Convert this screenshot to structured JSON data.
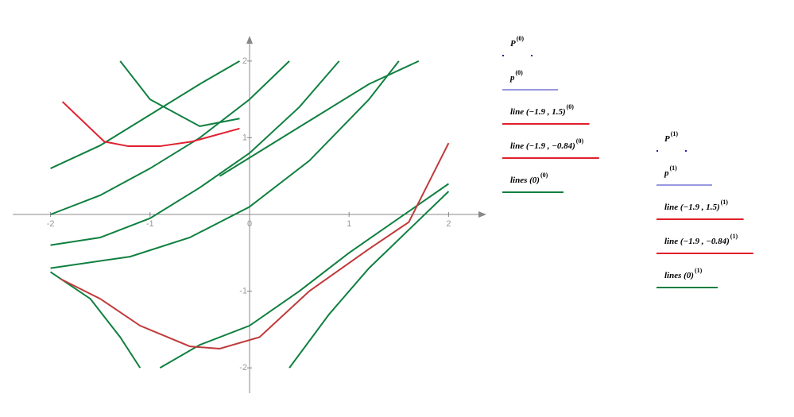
{
  "chart_data": {
    "type": "line",
    "xlim": [
      -2.38,
      2.38
    ],
    "ylim": [
      -2.33,
      2.33
    ],
    "xticks": [
      -2,
      -1,
      0,
      1,
      2
    ],
    "yticks": [
      -2,
      -1,
      1,
      2
    ],
    "series": [
      {
        "color": "#108040",
        "x": [
          -2,
          -1.5,
          -1,
          -0.5,
          -0.1
        ],
        "y": [
          0.6,
          0.9,
          1.3,
          1.7,
          2.0
        ]
      },
      {
        "color": "#108040",
        "x": [
          -2,
          -1.5,
          -1,
          -0.5,
          0,
          0.4
        ],
        "y": [
          0.0,
          0.25,
          0.6,
          1.0,
          1.5,
          2.0
        ]
      },
      {
        "color": "#108040",
        "x": [
          -2,
          -1.5,
          -1,
          -0.5,
          0,
          0.5,
          0.9
        ],
        "y": [
          -0.4,
          -0.3,
          -0.05,
          0.35,
          0.8,
          1.4,
          2.0
        ]
      },
      {
        "color": "#108040",
        "x": [
          -2,
          -1.2,
          -0.6,
          0,
          0.6,
          1.2,
          1.5
        ],
        "y": [
          -0.7,
          -0.55,
          -0.3,
          0.1,
          0.7,
          1.5,
          2.0
        ]
      },
      {
        "color": "#108040",
        "x": [
          -2,
          -1.6,
          -1.3,
          -1.1
        ],
        "y": [
          -0.75,
          -1.1,
          -1.6,
          -2.0
        ]
      },
      {
        "color": "#108040",
        "x": [
          -0.9,
          -0.5,
          0,
          0.5,
          1,
          1.5,
          2
        ],
        "y": [
          -2.0,
          -1.7,
          -1.45,
          -1.0,
          -0.5,
          -0.05,
          0.4
        ]
      },
      {
        "color": "#108040",
        "x": [
          0.4,
          0.8,
          1.2,
          1.6,
          2
        ],
        "y": [
          -2.0,
          -1.3,
          -0.7,
          -0.2,
          0.3
        ]
      },
      {
        "color": "#108040",
        "x": [
          -1.3,
          -1.0,
          -0.5,
          -0.1
        ],
        "y": [
          2.0,
          1.5,
          1.15,
          1.25
        ]
      },
      {
        "color": "#108040",
        "x": [
          -0.3,
          0.2,
          0.7,
          1.2,
          1.7
        ],
        "y": [
          0.5,
          0.9,
          1.3,
          1.7,
          2.0
        ]
      },
      {
        "color": "#e02030",
        "x": [
          -1.88,
          -1.46,
          -1.22,
          -0.9,
          -0.58,
          -0.1
        ],
        "y": [
          1.47,
          0.95,
          0.89,
          0.89,
          0.95,
          1.12
        ]
      },
      {
        "color": "#c03a3a",
        "x": [
          -1.9,
          -1.5,
          -1.1,
          -0.6,
          -0.3,
          0.1,
          0.6,
          1.2,
          1.6,
          2.0
        ],
        "y": [
          -0.84,
          -1.1,
          -1.45,
          -1.72,
          -1.75,
          -1.6,
          -1.0,
          -0.45,
          -0.1,
          0.93
        ]
      }
    ],
    "legend": [
      {
        "items": [
          {
            "label": "P",
            "superscript": "(0)",
            "color": "#2020a0",
            "style": "dots"
          },
          {
            "label": "p",
            "superscript": "(0)",
            "color": "#3030c0",
            "style": "line"
          },
          {
            "label": "line (−1.9 , 1.5)",
            "superscript": "(0)",
            "color": "#e0202a",
            "style": "line"
          },
          {
            "label": "line (−1.9 , −0.84)",
            "superscript": "(0)",
            "color": "#e0202a",
            "style": "line"
          },
          {
            "label": "lines (0)",
            "superscript": "(0)",
            "color": "#108040",
            "style": "line"
          }
        ]
      },
      {
        "items": [
          {
            "label": "P",
            "superscript": "(1)",
            "color": "#2020a0",
            "style": "dots"
          },
          {
            "label": "p",
            "superscript": "(1)",
            "color": "#3030c0",
            "style": "line"
          },
          {
            "label": "line (−1.9 , 1.5)",
            "superscript": "(1)",
            "color": "#e0202a",
            "style": "line"
          },
          {
            "label": "line (−1.9 , −0.84)",
            "superscript": "(1)",
            "color": "#e0202a",
            "style": "line"
          },
          {
            "label": "lines (0)",
            "superscript": "(1)",
            "color": "#108040",
            "style": "line"
          }
        ]
      }
    ]
  }
}
